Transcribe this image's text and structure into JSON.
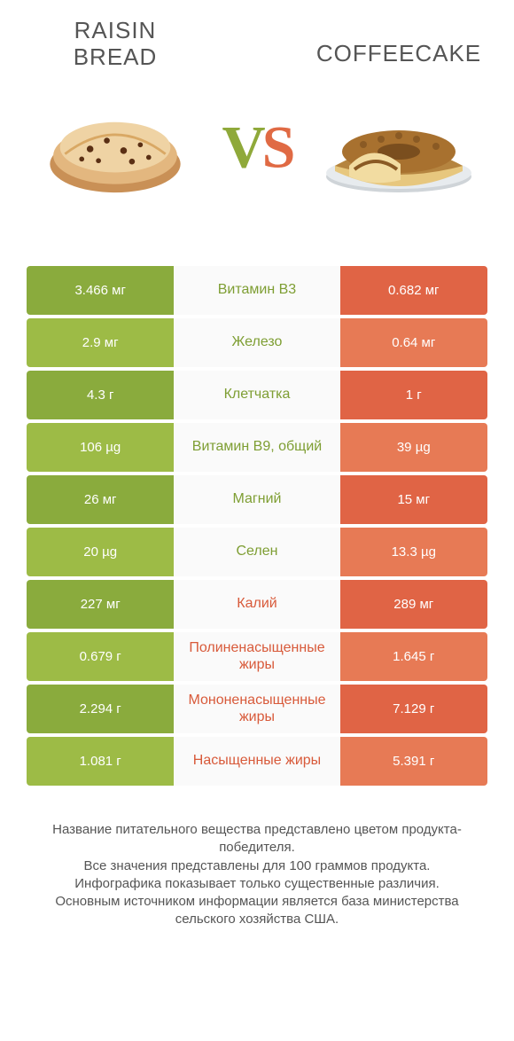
{
  "colors": {
    "green_dark": "#8aab3d",
    "green_light": "#9dbb46",
    "orange_dark": "#e06445",
    "orange_light": "#e77a55",
    "mid_bg": "#fafafa",
    "text_green": "#7e9e33",
    "text_orange": "#d85a3a"
  },
  "header": {
    "left_title": "RAISIN\nBREAD",
    "right_title": "COFFEECAKE",
    "vs_v": "V",
    "vs_s": "S"
  },
  "rows": [
    {
      "left": "3.466 мг",
      "mid": "Витамин B3",
      "right": "0.682 мг",
      "winner": "left"
    },
    {
      "left": "2.9 мг",
      "mid": "Железо",
      "right": "0.64 мг",
      "winner": "left"
    },
    {
      "left": "4.3 г",
      "mid": "Клетчатка",
      "right": "1 г",
      "winner": "left"
    },
    {
      "left": "106 µg",
      "mid": "Витамин B9, общий",
      "right": "39 µg",
      "winner": "left"
    },
    {
      "left": "26 мг",
      "mid": "Магний",
      "right": "15 мг",
      "winner": "left"
    },
    {
      "left": "20 µg",
      "mid": "Селен",
      "right": "13.3 µg",
      "winner": "left"
    },
    {
      "left": "227 мг",
      "mid": "Калий",
      "right": "289 мг",
      "winner": "right"
    },
    {
      "left": "0.679 г",
      "mid": "Полиненасыщенные жиры",
      "right": "1.645 г",
      "winner": "right"
    },
    {
      "left": "2.294 г",
      "mid": "Мононенасыщенные жиры",
      "right": "7.129 г",
      "winner": "right"
    },
    {
      "left": "1.081 г",
      "mid": "Насыщенные жиры",
      "right": "5.391 г",
      "winner": "right"
    }
  ],
  "footer": {
    "l1": "Название питательного вещества представлено цветом продукта-победителя.",
    "l2": "Все значения представлены для 100 граммов продукта.",
    "l3": "Инфографика показывает только существенные различия.",
    "l4": "Основным источником информации является база министерства сельского хозяйства США."
  }
}
